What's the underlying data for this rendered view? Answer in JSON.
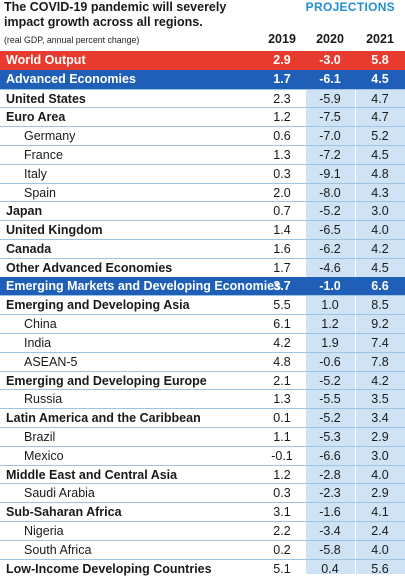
{
  "header": {
    "title": "The COVID-19 pandemic will severely impact growth across all regions.",
    "subtitle": "(real GDP, annual percent change)",
    "projections_label": "PROJECTIONS",
    "years": [
      "2019",
      "2020",
      "2021"
    ]
  },
  "colors": {
    "world_output_row": "#e63b2e",
    "group_row": "#1f5fb8",
    "projection_columns": "#cfe3f4",
    "projections_label": "#1f8fd1"
  },
  "rows": [
    {
      "name": "World Output",
      "v2019": "2.9",
      "v2020": "-3.0",
      "v2021": "5.8",
      "style": "red"
    },
    {
      "name": "Advanced Economies",
      "v2019": "1.7",
      "v2020": "-6.1",
      "v2021": "4.5",
      "style": "blue"
    },
    {
      "name": "United States",
      "v2019": "2.3",
      "v2020": "-5.9",
      "v2021": "4.7",
      "style": "bold"
    },
    {
      "name": "Euro Area",
      "v2019": "1.2",
      "v2020": "-7.5",
      "v2021": "4.7",
      "style": "bold"
    },
    {
      "name": "Germany",
      "v2019": "0.6",
      "v2020": "-7.0",
      "v2021": "5.2",
      "style": "sub"
    },
    {
      "name": "France",
      "v2019": "1.3",
      "v2020": "-7.2",
      "v2021": "4.5",
      "style": "sub"
    },
    {
      "name": "Italy",
      "v2019": "0.3",
      "v2020": "-9.1",
      "v2021": "4.8",
      "style": "sub"
    },
    {
      "name": "Spain",
      "v2019": "2.0",
      "v2020": "-8.0",
      "v2021": "4.3",
      "style": "sub"
    },
    {
      "name": "Japan",
      "v2019": "0.7",
      "v2020": "-5.2",
      "v2021": "3.0",
      "style": "bold"
    },
    {
      "name": "United Kingdom",
      "v2019": "1.4",
      "v2020": "-6.5",
      "v2021": "4.0",
      "style": "bold"
    },
    {
      "name": "Canada",
      "v2019": "1.6",
      "v2020": "-6.2",
      "v2021": "4.2",
      "style": "bold"
    },
    {
      "name": "Other Advanced Economies",
      "v2019": "1.7",
      "v2020": "-4.6",
      "v2021": "4.5",
      "style": "bold"
    },
    {
      "name": "Emerging Markets and Developing Economies",
      "v2019": "3.7",
      "v2020": "-1.0",
      "v2021": "6.6",
      "style": "blue"
    },
    {
      "name": "Emerging and Developing Asia",
      "v2019": "5.5",
      "v2020": "1.0",
      "v2021": "8.5",
      "style": "bold"
    },
    {
      "name": "China",
      "v2019": "6.1",
      "v2020": "1.2",
      "v2021": "9.2",
      "style": "sub"
    },
    {
      "name": "India",
      "v2019": "4.2",
      "v2020": "1.9",
      "v2021": "7.4",
      "style": "sub"
    },
    {
      "name": "ASEAN-5",
      "v2019": "4.8",
      "v2020": "-0.6",
      "v2021": "7.8",
      "style": "sub"
    },
    {
      "name": "Emerging and Developing Europe",
      "v2019": "2.1",
      "v2020": "-5.2",
      "v2021": "4.2",
      "style": "bold"
    },
    {
      "name": "Russia",
      "v2019": "1.3",
      "v2020": "-5.5",
      "v2021": "3.5",
      "style": "sub"
    },
    {
      "name": "Latin America and the Caribbean",
      "v2019": "0.1",
      "v2020": "-5.2",
      "v2021": "3.4",
      "style": "bold"
    },
    {
      "name": "Brazil",
      "v2019": "1.1",
      "v2020": "-5.3",
      "v2021": "2.9",
      "style": "sub"
    },
    {
      "name": "Mexico",
      "v2019": "-0.1",
      "v2020": "-6.6",
      "v2021": "3.0",
      "style": "sub"
    },
    {
      "name": "Middle East and Central Asia",
      "v2019": "1.2",
      "v2020": "-2.8",
      "v2021": "4.0",
      "style": "bold"
    },
    {
      "name": "Saudi Arabia",
      "v2019": "0.3",
      "v2020": "-2.3",
      "v2021": "2.9",
      "style": "sub"
    },
    {
      "name": "Sub-Saharan Africa",
      "v2019": "3.1",
      "v2020": "-1.6",
      "v2021": "4.1",
      "style": "bold"
    },
    {
      "name": "Nigeria",
      "v2019": "2.2",
      "v2020": "-3.4",
      "v2021": "2.4",
      "style": "sub"
    },
    {
      "name": "South Africa",
      "v2019": "0.2",
      "v2020": "-5.8",
      "v2021": "4.0",
      "style": "sub"
    },
    {
      "name": "Low-Income Developing Countries",
      "v2019": "5.1",
      "v2020": "0.4",
      "v2021": "5.6",
      "style": "bold"
    }
  ]
}
